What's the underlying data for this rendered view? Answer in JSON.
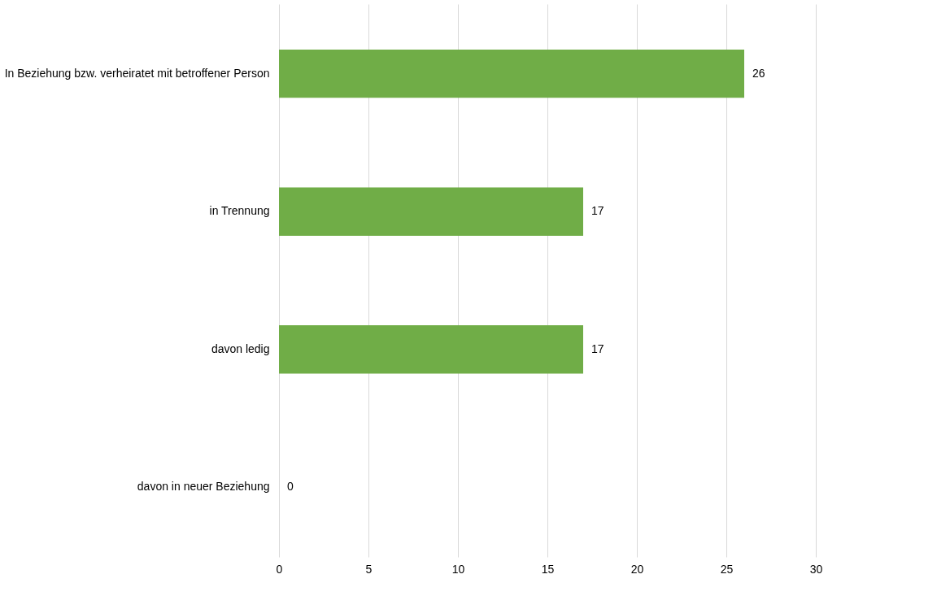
{
  "chart_data": {
    "type": "bar",
    "orientation": "horizontal",
    "categories": [
      "In Beziehung bzw. verheiratet mit betroffener Person",
      "in Trennung",
      "davon ledig",
      "davon in neuer Beziehung"
    ],
    "values": [
      26,
      17,
      17,
      0
    ],
    "color": "#70ad47",
    "xlim": [
      0,
      30
    ],
    "xticks": [
      0,
      5,
      10,
      15,
      20,
      25,
      30
    ],
    "grid": "x",
    "data_labels": true
  }
}
